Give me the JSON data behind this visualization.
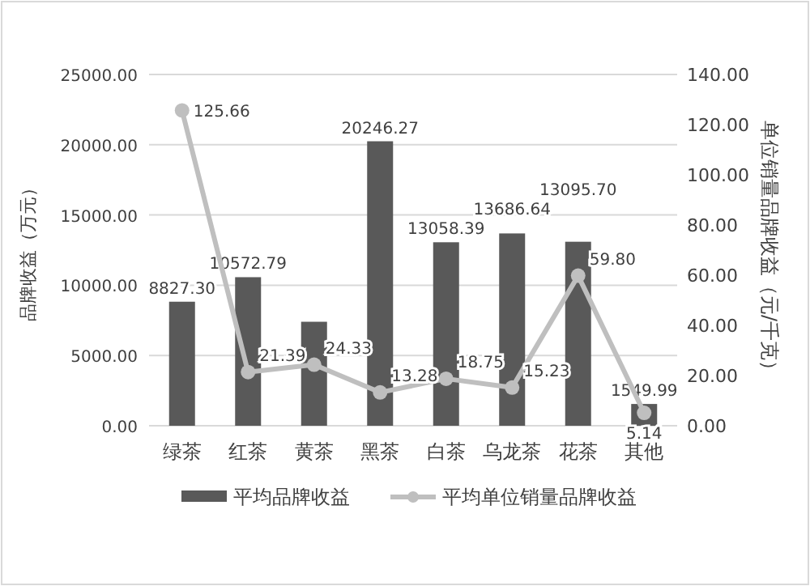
{
  "chart_data": {
    "type": "bar",
    "ylabel": "品牌收益（万元）",
    "y2label": "单位销量品牌收益（元/千克）",
    "categories": [
      "绿茶",
      "红茶",
      "黄茶",
      "黑茶",
      "白茶",
      "乌龙茶",
      "花茶",
      "其他"
    ],
    "series": [
      {
        "name": "平均品牌收益",
        "color": "#595959",
        "values": [
          8827.3,
          10572.79,
          7400,
          20246.27,
          13058.39,
          13686.64,
          13095.7,
          1549.99
        ],
        "value_labels": [
          "8827.30",
          "10572.79",
          null,
          "20246.27",
          "13058.39",
          "13686.64",
          "13095.70",
          "1549.99"
        ]
      },
      {
        "name": "平均单位销量品牌收益",
        "type": "line",
        "axis": "y2",
        "color": "#bfbfbf",
        "marker": "circle",
        "values": [
          125.66,
          21.39,
          24.33,
          13.28,
          18.75,
          15.23,
          59.8,
          5.14
        ],
        "value_labels": [
          "125.66",
          "21.39",
          "24.33",
          "13.28",
          "18.75",
          "15.23",
          "59.80",
          "5.14"
        ]
      }
    ],
    "ylim": [
      0,
      25000
    ],
    "yticks": [
      {
        "value": 0,
        "label": "0.00"
      },
      {
        "value": 5000,
        "label": "5000.00"
      },
      {
        "value": 10000,
        "label": "10000.00"
      },
      {
        "value": 15000,
        "label": "15000.00"
      },
      {
        "value": 20000,
        "label": "20000.00"
      },
      {
        "value": 25000,
        "label": "25000.00"
      }
    ],
    "y2lim": [
      0,
      140
    ],
    "y2ticks": [
      {
        "value": 0,
        "label": "0.00"
      },
      {
        "value": 20,
        "label": "20.00"
      },
      {
        "value": 40,
        "label": "40.00"
      },
      {
        "value": 60,
        "label": "60.00"
      },
      {
        "value": 80,
        "label": "80.00"
      },
      {
        "value": 100,
        "label": "100.00"
      },
      {
        "value": 120,
        "label": "120.00"
      },
      {
        "value": 140,
        "label": "140.00"
      }
    ],
    "grid": "y",
    "legend": "bottom"
  }
}
